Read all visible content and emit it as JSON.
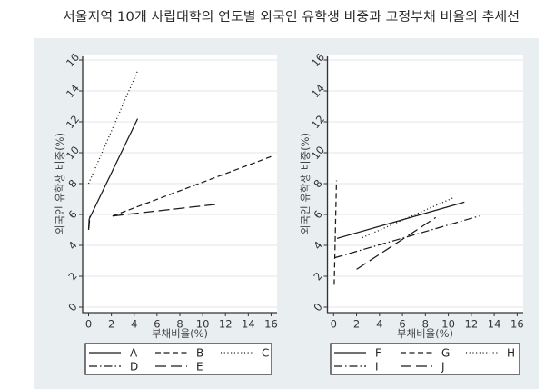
{
  "figure_title": "서울지역 10개 사립대학의 연도별 외국인 유학생 비중과 고정부채 비율의 추세선",
  "colors": {
    "panel_background": "#e9eef1",
    "plot_background": "#ffffff",
    "gridline": "#e3e5e7",
    "axis": "#333333",
    "series_line": "#1a1a1a"
  },
  "chart_data": [
    {
      "type": "line",
      "title": "",
      "xlabel": "부채비율(%)",
      "ylabel": "외국인 유학생 비중(%)",
      "xlim": [
        0,
        16
      ],
      "ylim": [
        0,
        16
      ],
      "xticks": [
        0,
        2,
        4,
        6,
        8,
        10,
        12,
        14,
        16
      ],
      "yticks": [
        0,
        2,
        4,
        6,
        8,
        10,
        12,
        14,
        16
      ],
      "grid": true,
      "legend_position": "bottom",
      "legend": [
        "A",
        "B",
        "C",
        "D",
        "E"
      ],
      "series": [
        {
          "name": "A",
          "style": "solid",
          "points": [
            [
              0.0,
              5.0
            ],
            [
              0.05,
              5.7
            ],
            [
              4.3,
              12.2
            ]
          ]
        },
        {
          "name": "B",
          "style": "dash",
          "points": [
            [
              2.1,
              5.9
            ],
            [
              16.0,
              9.75
            ]
          ]
        },
        {
          "name": "C",
          "style": "dot",
          "points": [
            [
              0.0,
              8.0
            ],
            [
              4.3,
              15.3
            ]
          ]
        },
        {
          "name": "D",
          "style": "dashdot",
          "points": [
            [
              0.02,
              5.1
            ],
            [
              0.12,
              5.9
            ]
          ]
        },
        {
          "name": "E",
          "style": "longdash",
          "points": [
            [
              2.1,
              5.9
            ],
            [
              11.1,
              6.65
            ]
          ]
        }
      ]
    },
    {
      "type": "line",
      "title": "",
      "xlabel": "부채비율(%)",
      "ylabel": "외국인 유학생 비중(%)",
      "xlim": [
        0,
        16
      ],
      "ylim": [
        0,
        16
      ],
      "xticks": [
        0,
        2,
        4,
        6,
        8,
        10,
        12,
        14,
        16
      ],
      "yticks": [
        0,
        2,
        4,
        6,
        8,
        10,
        12,
        14,
        16
      ],
      "grid": true,
      "legend_position": "bottom",
      "legend": [
        "F",
        "G",
        "H",
        "I",
        "J"
      ],
      "series": [
        {
          "name": "F",
          "style": "solid",
          "points": [
            [
              0.3,
              4.45
            ],
            [
              11.4,
              6.8
            ]
          ]
        },
        {
          "name": "G",
          "style": "dash",
          "points": [
            [
              0.05,
              1.45
            ],
            [
              0.25,
              8.2
            ]
          ]
        },
        {
          "name": "H",
          "style": "dot",
          "points": [
            [
              2.5,
              4.5
            ],
            [
              10.5,
              7.1
            ]
          ]
        },
        {
          "name": "I",
          "style": "dashdot",
          "points": [
            [
              0.1,
              3.2
            ],
            [
              12.7,
              5.9
            ]
          ]
        },
        {
          "name": "J",
          "style": "longdash",
          "points": [
            [
              2.0,
              2.45
            ],
            [
              8.9,
              5.8
            ]
          ]
        }
      ]
    }
  ]
}
